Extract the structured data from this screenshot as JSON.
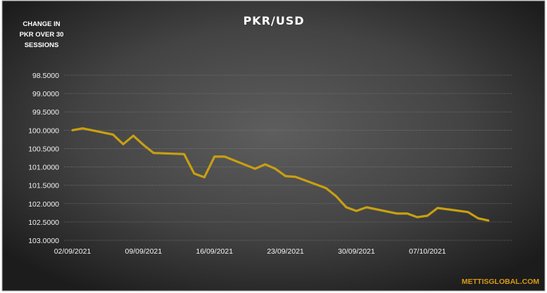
{
  "chart_data": {
    "type": "line",
    "title": "PKR/USD",
    "ylabel": "CHANGE IN PKR OVER 30 SESSIONS",
    "ylabel_lines": [
      "CHANGE IN",
      "PKR OVER 30",
      "SESSIONS"
    ],
    "xlabel": "",
    "y_axis_reversed": true,
    "ylim": [
      98.5,
      103.0
    ],
    "y_ticks": [
      "98.5000",
      "99.0000",
      "99.5000",
      "100.0000",
      "100.5000",
      "101.0000",
      "101.5000",
      "102.0000",
      "102.5000",
      "103.0000"
    ],
    "x_tick_labels": [
      "02/09/2021",
      "09/09/2021",
      "16/09/2021",
      "23/09/2021",
      "30/09/2021",
      "07/10/2021"
    ],
    "x_tick_dates": [
      "2021-09-02",
      "2021-09-09",
      "2021-09-16",
      "2021-09-23",
      "2021-09-30",
      "2021-10-07"
    ],
    "x_range": [
      "2021-09-02",
      "2021-10-14"
    ],
    "grid": "horizontal",
    "legend": "none",
    "series": [
      {
        "color": "#c8a011",
        "points": [
          [
            "2021-09-02",
            100.0
          ],
          [
            "2021-09-03",
            99.95
          ],
          [
            "2021-09-06",
            100.12
          ],
          [
            "2021-09-07",
            100.38
          ],
          [
            "2021-09-08",
            100.15
          ],
          [
            "2021-09-09",
            100.4
          ],
          [
            "2021-09-10",
            100.62
          ],
          [
            "2021-09-13",
            100.65
          ],
          [
            "2021-09-14",
            101.18
          ],
          [
            "2021-09-15",
            101.28
          ],
          [
            "2021-09-16",
            100.72
          ],
          [
            "2021-09-17",
            100.72
          ],
          [
            "2021-09-20",
            101.05
          ],
          [
            "2021-09-21",
            100.93
          ],
          [
            "2021-09-22",
            101.05
          ],
          [
            "2021-09-23",
            101.25
          ],
          [
            "2021-09-24",
            101.27
          ],
          [
            "2021-09-27",
            101.58
          ],
          [
            "2021-09-28",
            101.8
          ],
          [
            "2021-09-29",
            102.1
          ],
          [
            "2021-09-30",
            102.2
          ],
          [
            "2021-10-01",
            102.1
          ],
          [
            "2021-10-04",
            102.27
          ],
          [
            "2021-10-05",
            102.27
          ],
          [
            "2021-10-06",
            102.37
          ],
          [
            "2021-10-07",
            102.33
          ],
          [
            "2021-10-08",
            102.12
          ],
          [
            "2021-10-11",
            102.23
          ],
          [
            "2021-10-12",
            102.4
          ],
          [
            "2021-10-13",
            102.46
          ]
        ]
      }
    ],
    "source_text": "METTISGLOBAL.COM"
  },
  "colors": {
    "background_outer": "#262626",
    "background_inner": "#5a5a5a",
    "line": "#c8a011",
    "text": "#ffffff",
    "tick_text": "#f2f2f2",
    "source": "#d89a16",
    "grid": "#7d7d7d"
  }
}
